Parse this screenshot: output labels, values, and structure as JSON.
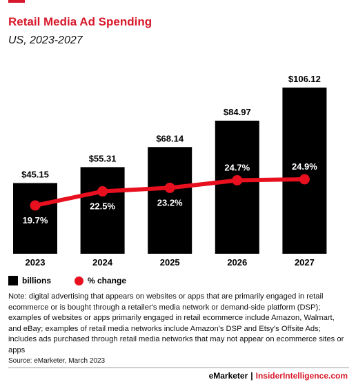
{
  "header": {
    "title": "Retail Media Ad Spending",
    "subtitle": "US, 2023-2027"
  },
  "legend": {
    "bar_label": "billions",
    "line_label": "% change"
  },
  "note": "Note: digital advertising that appears on websites or apps that are primarily engaged in retail ecommerce or is bought through a retailer's media network or demand-side platform (DSP); examples of websites or apps primarily engaged in retail ecommerce include Amazon, Walmart, and eBay; examples of retail media networks include Amazon's DSP and Etsy's Offsite Ads; includes ads purchased through retail media networks that may not appear on ecommerce sites or apps",
  "source": "Source: eMarketer, March 2023",
  "footer": {
    "brand_left": "eMarketer",
    "separator": "|",
    "brand_right": "InsiderIntelligence.com"
  },
  "colors": {
    "accent": "#d7182a",
    "bar": "#000000",
    "line": "#e8101e"
  },
  "chart_data": {
    "type": "bar",
    "categories": [
      "2023",
      "2024",
      "2025",
      "2026",
      "2027"
    ],
    "series": [
      {
        "name": "billions",
        "type": "bar",
        "values": [
          45.15,
          55.31,
          68.14,
          84.97,
          106.12
        ],
        "labels": [
          "$45.15",
          "$55.31",
          "$68.14",
          "$84.97",
          "$106.12"
        ]
      },
      {
        "name": "% change",
        "type": "line",
        "values": [
          19.7,
          22.5,
          23.2,
          24.7,
          24.9
        ],
        "labels": [
          "19.7%",
          "22.5%",
          "23.2%",
          "24.7%",
          "24.9%"
        ]
      }
    ],
    "ylim": [
      0,
      106.12
    ],
    "grid": false,
    "legend_position": "bottom-left"
  }
}
